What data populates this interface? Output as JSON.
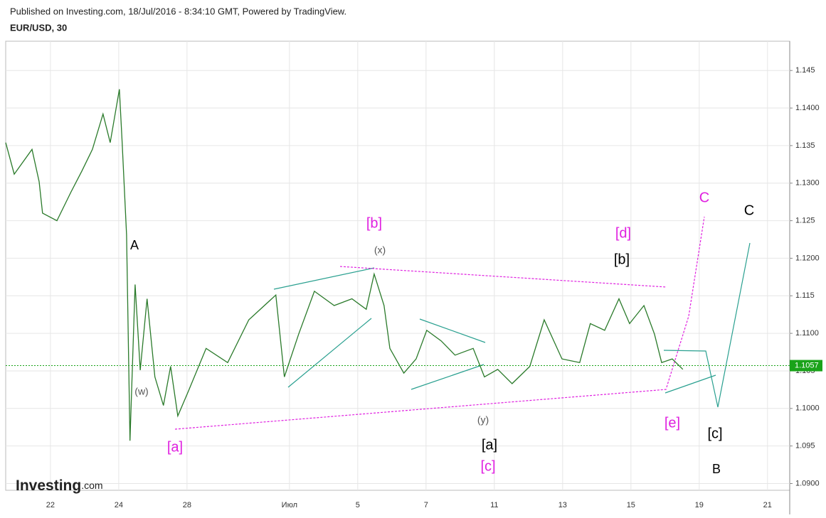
{
  "header": {
    "published": "Published on Investing.com, 18/Jul/2016 - 8:34:10 GMT, Powered by TradingView.",
    "symbol": "EUR/USD, 30"
  },
  "logo": {
    "name": "Investing",
    "suffix": ".com"
  },
  "chart_data": {
    "type": "line",
    "color": "#2a7a2a",
    "grid": true,
    "x": [
      -1.31,
      -1.06,
      -0.54,
      -0.33,
      -0.23,
      0.19,
      0.6,
      0.92,
      1.23,
      1.54,
      1.75,
      2.02,
      2.1,
      2.23,
      2.33,
      2.48,
      2.63,
      2.83,
      3.06,
      3.31,
      3.52,
      3.73,
      4.04,
      4.56,
      5.19,
      5.81,
      6.6,
      6.85,
      7.27,
      7.73,
      8.31,
      8.83,
      9.25,
      9.48,
      9.77,
      9.94,
      10.35,
      10.71,
      11.02,
      11.44,
      11.85,
      12.38,
      12.71,
      13.1,
      13.52,
      14.04,
      14.46,
      14.98,
      15.5,
      15.81,
      16.23,
      16.65,
      16.96,
      17.38,
      17.69,
      17.9,
      18.21,
      18.52
    ],
    "values": [
      1.1354,
      1.1312,
      1.1345,
      1.1302,
      1.126,
      1.125,
      1.1288,
      1.1316,
      1.1345,
      1.1392,
      1.1354,
      1.1425,
      1.1354,
      1.1231,
      1.0957,
      1.1165,
      1.1051,
      1.1146,
      1.1042,
      1.1004,
      1.1056,
      1.099,
      1.1023,
      1.108,
      1.1061,
      1.1118,
      1.1151,
      1.1042,
      1.1099,
      1.1156,
      1.1137,
      1.1146,
      1.1132,
      1.1179,
      1.1137,
      1.108,
      1.1047,
      1.1066,
      1.1104,
      1.109,
      1.1071,
      1.108,
      1.1042,
      1.1052,
      1.1033,
      1.1056,
      1.1118,
      1.1066,
      1.1061,
      1.1113,
      1.1104,
      1.1146,
      1.1113,
      1.1137,
      1.1099,
      1.1061,
      1.1066,
      1.1052
    ],
    "xlim": [
      -1.31,
      21.65
    ],
    "xticks": [
      {
        "value": 0,
        "label": "22"
      },
      {
        "value": 2,
        "label": "24"
      },
      {
        "value": 4,
        "label": "28"
      },
      {
        "value": 7,
        "label": "Июл"
      },
      {
        "value": 9,
        "label": "5"
      },
      {
        "value": 11,
        "label": "7"
      },
      {
        "value": 13,
        "label": "11"
      },
      {
        "value": 15,
        "label": "13"
      },
      {
        "value": 17,
        "label": "15"
      },
      {
        "value": 19,
        "label": "19"
      },
      {
        "value": 21,
        "label": "21"
      }
    ],
    "ylim": [
      1.0891,
      1.1489
    ],
    "yticks": [
      {
        "value": 1.09,
        "label": "1.0900"
      },
      1.095,
      {
        "value": 1.1,
        "label": "1.1000"
      },
      1.105,
      {
        "value": 1.11,
        "label": "1.1100"
      },
      1.115,
      {
        "value": 1.12,
        "label": "1.1200"
      },
      1.125,
      {
        "value": 1.13,
        "label": "1.1300"
      },
      1.135,
      {
        "value": 1.14,
        "label": "1.1400"
      },
      1.145
    ],
    "last_price": 1.1057,
    "annotations": [
      {
        "text": "A",
        "color": "#000000"
      },
      {
        "text": "[b]",
        "color": "#e020e0"
      },
      {
        "text": "(x)",
        "color": "#555555"
      },
      {
        "text": "[d]",
        "color": "#e020e0"
      },
      {
        "text": "[b]",
        "color": "#000000"
      },
      {
        "text": "C",
        "color": "#e020e0"
      },
      {
        "text": "C",
        "color": "#000000"
      },
      {
        "text": "(w)",
        "color": "#555555"
      },
      {
        "text": "[a]",
        "color": "#e020e0"
      },
      {
        "text": "(y)",
        "color": "#555555"
      },
      {
        "text": "[a]",
        "color": "#000000"
      },
      {
        "text": "[c]",
        "color": "#e020e0"
      },
      {
        "text": "[e]",
        "color": "#e020e0"
      },
      {
        "text": "[c]",
        "color": "#000000"
      },
      {
        "text": "B",
        "color": "#000000"
      }
    ]
  }
}
